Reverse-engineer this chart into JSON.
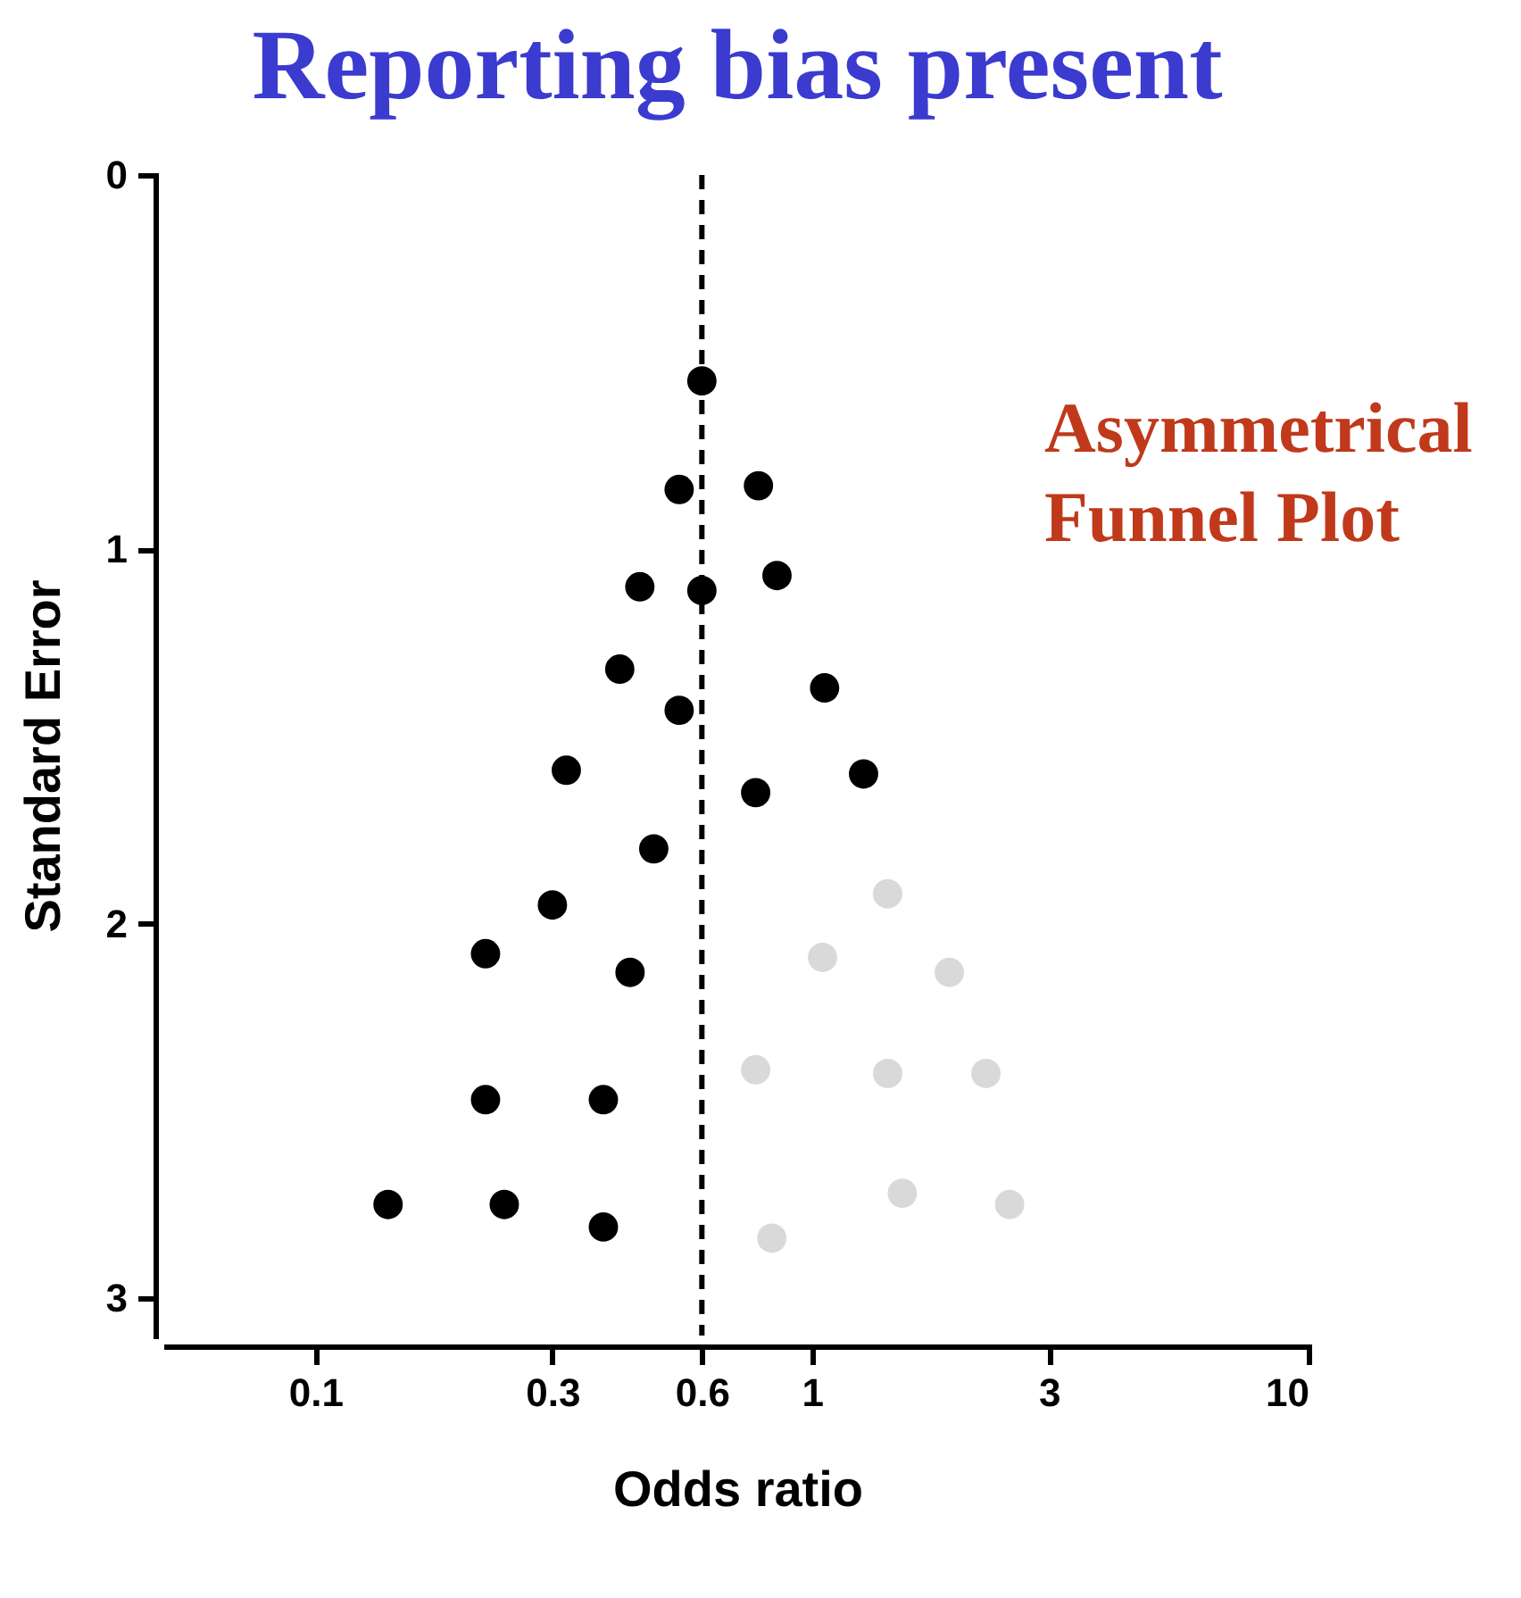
{
  "chart_data": {
    "type": "scatter",
    "title": "Reporting bias present",
    "xlabel": "Odds ratio",
    "ylabel": "Standard Error",
    "annotations": [
      "Asymmetrical Funnel Plot"
    ],
    "log": "x",
    "xlim": [
      0.05,
      10
    ],
    "xticks": [
      0.1,
      0.3,
      0.6,
      1,
      3,
      10
    ],
    "ylim": [
      3.1,
      0
    ],
    "yticks": [
      0,
      1,
      2,
      3
    ],
    "grid": false,
    "legend": false,
    "marker": "circle",
    "ref_lines": [
      {
        "axis": "x",
        "value": 0.6,
        "color": "#000000",
        "line_style": "dashed"
      }
    ],
    "series": [
      {
        "color": "#000000",
        "x": [
          0.6,
          0.54,
          0.78,
          0.45,
          0.6,
          0.85,
          0.41,
          0.54,
          1.06,
          0.32,
          1.27,
          0.77,
          0.48,
          0.3,
          0.22,
          0.43,
          0.22,
          0.38,
          0.14,
          0.24,
          0.38
        ],
        "values": [
          0.55,
          0.84,
          0.83,
          1.1,
          1.11,
          1.07,
          1.32,
          1.43,
          1.37,
          1.59,
          1.6,
          1.65,
          1.8,
          1.95,
          2.08,
          2.13,
          2.47,
          2.47,
          2.75,
          2.75,
          2.81
        ]
      },
      {
        "color": "#d9d9d9",
        "x": [
          1.42,
          1.05,
          1.89,
          0.77,
          1.42,
          2.24,
          1.52,
          2.5,
          0.83
        ],
        "values": [
          1.92,
          2.09,
          2.13,
          2.39,
          2.4,
          2.4,
          2.72,
          2.75,
          2.84
        ]
      }
    ]
  }
}
